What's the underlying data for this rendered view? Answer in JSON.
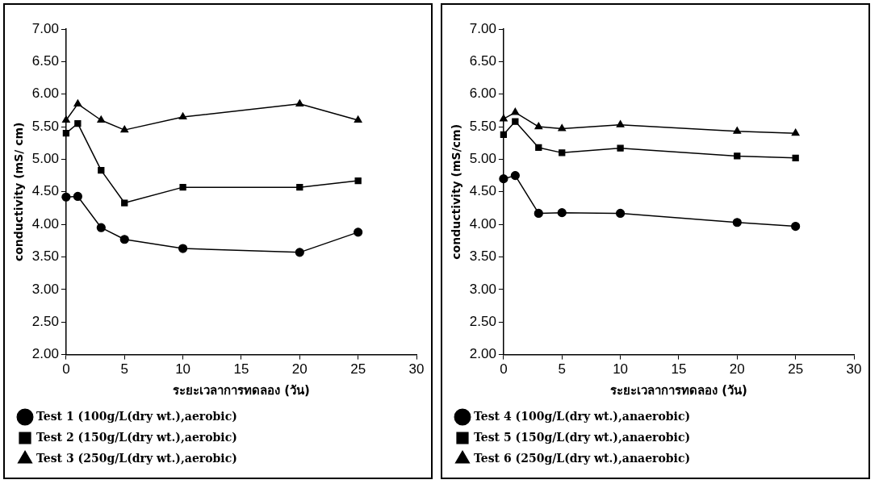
{
  "chart_data": [
    {
      "type": "line",
      "xlabel": "ระยะเวลาการทดลอง (วัน)",
      "ylabel": "conductivity (mS/ cm)",
      "x": [
        0,
        1,
        3,
        5,
        10,
        20,
        25
      ],
      "xlim": [
        0,
        30
      ],
      "xticks": [
        0,
        5,
        10,
        15,
        20,
        25,
        30
      ],
      "ylim": [
        2,
        7
      ],
      "yticks": [
        {
          "value": 2,
          "label": "2.00"
        },
        {
          "value": 2.5,
          "label": "2.50"
        },
        {
          "value": 3,
          "label": "3.00"
        },
        {
          "value": 3.5,
          "label": "3.50"
        },
        {
          "value": 4,
          "label": "4.00"
        },
        {
          "value": 4.5,
          "label": "4.50"
        },
        {
          "value": 5,
          "label": "5.00"
        },
        {
          "value": 5.5,
          "label": "5.50"
        },
        {
          "value": 6,
          "label": "6.00"
        },
        {
          "value": 6.5,
          "label": "6.50"
        },
        {
          "value": 7,
          "label": "7.00"
        }
      ],
      "grid": false,
      "legend": "bottom",
      "line_style": "solid",
      "series": [
        {
          "name": "Test 1 (100g/L(dry wt.),aerobic)",
          "color": "#000000",
          "marker": "circle",
          "values": [
            4.42,
            4.43,
            3.95,
            3.77,
            3.63,
            3.57,
            3.88
          ]
        },
        {
          "name": "Test 2 (150g/L(dry wt.),aerobic)",
          "color": "#000000",
          "marker": "square",
          "values": [
            5.4,
            5.55,
            4.83,
            4.33,
            4.57,
            4.57,
            4.67
          ]
        },
        {
          "name": "Test 3 (250g/L(dry wt.),aerobic)",
          "color": "#000000",
          "marker": "triangle",
          "values": [
            5.6,
            5.85,
            5.6,
            5.45,
            5.65,
            5.85,
            5.6
          ]
        }
      ]
    },
    {
      "type": "line",
      "xlabel": "ระยะเวลาการทดลอง (วัน)",
      "ylabel": "conductivity (mS/cm)",
      "x": [
        0,
        1,
        3,
        5,
        10,
        20,
        25
      ],
      "xlim": [
        0,
        30
      ],
      "xticks": [
        0,
        5,
        10,
        15,
        20,
        25,
        30
      ],
      "ylim": [
        2,
        7
      ],
      "yticks": [
        {
          "value": 2,
          "label": "2.00"
        },
        {
          "value": 2.5,
          "label": "2.50"
        },
        {
          "value": 3,
          "label": "3.00"
        },
        {
          "value": 3.5,
          "label": "3.50"
        },
        {
          "value": 4,
          "label": "4.00"
        },
        {
          "value": 4.5,
          "label": "4.50"
        },
        {
          "value": 5,
          "label": "5.00"
        },
        {
          "value": 5.5,
          "label": "5.50"
        },
        {
          "value": 6,
          "label": "6.00"
        },
        {
          "value": 6.5,
          "label": "6.50"
        },
        {
          "value": 7,
          "label": "7.00"
        }
      ],
      "grid": false,
      "legend": "bottom",
      "line_style": "solid",
      "series": [
        {
          "name": "Test 4 (100g/L(dry wt.),anaerobic)",
          "color": "#000000",
          "marker": "circle",
          "values": [
            4.7,
            4.75,
            4.17,
            4.18,
            4.17,
            4.03,
            3.97
          ]
        },
        {
          "name": "Test 5 (150g/L(dry wt.),anaerobic)",
          "color": "#000000",
          "marker": "square",
          "values": [
            5.38,
            5.58,
            5.18,
            5.1,
            5.17,
            5.05,
            5.02
          ]
        },
        {
          "name": "Test 6 (250g/L(dry wt.),anaerobic)",
          "color": "#000000",
          "marker": "triangle",
          "values": [
            5.62,
            5.72,
            5.5,
            5.47,
            5.53,
            5.43,
            5.4
          ]
        }
      ]
    }
  ]
}
